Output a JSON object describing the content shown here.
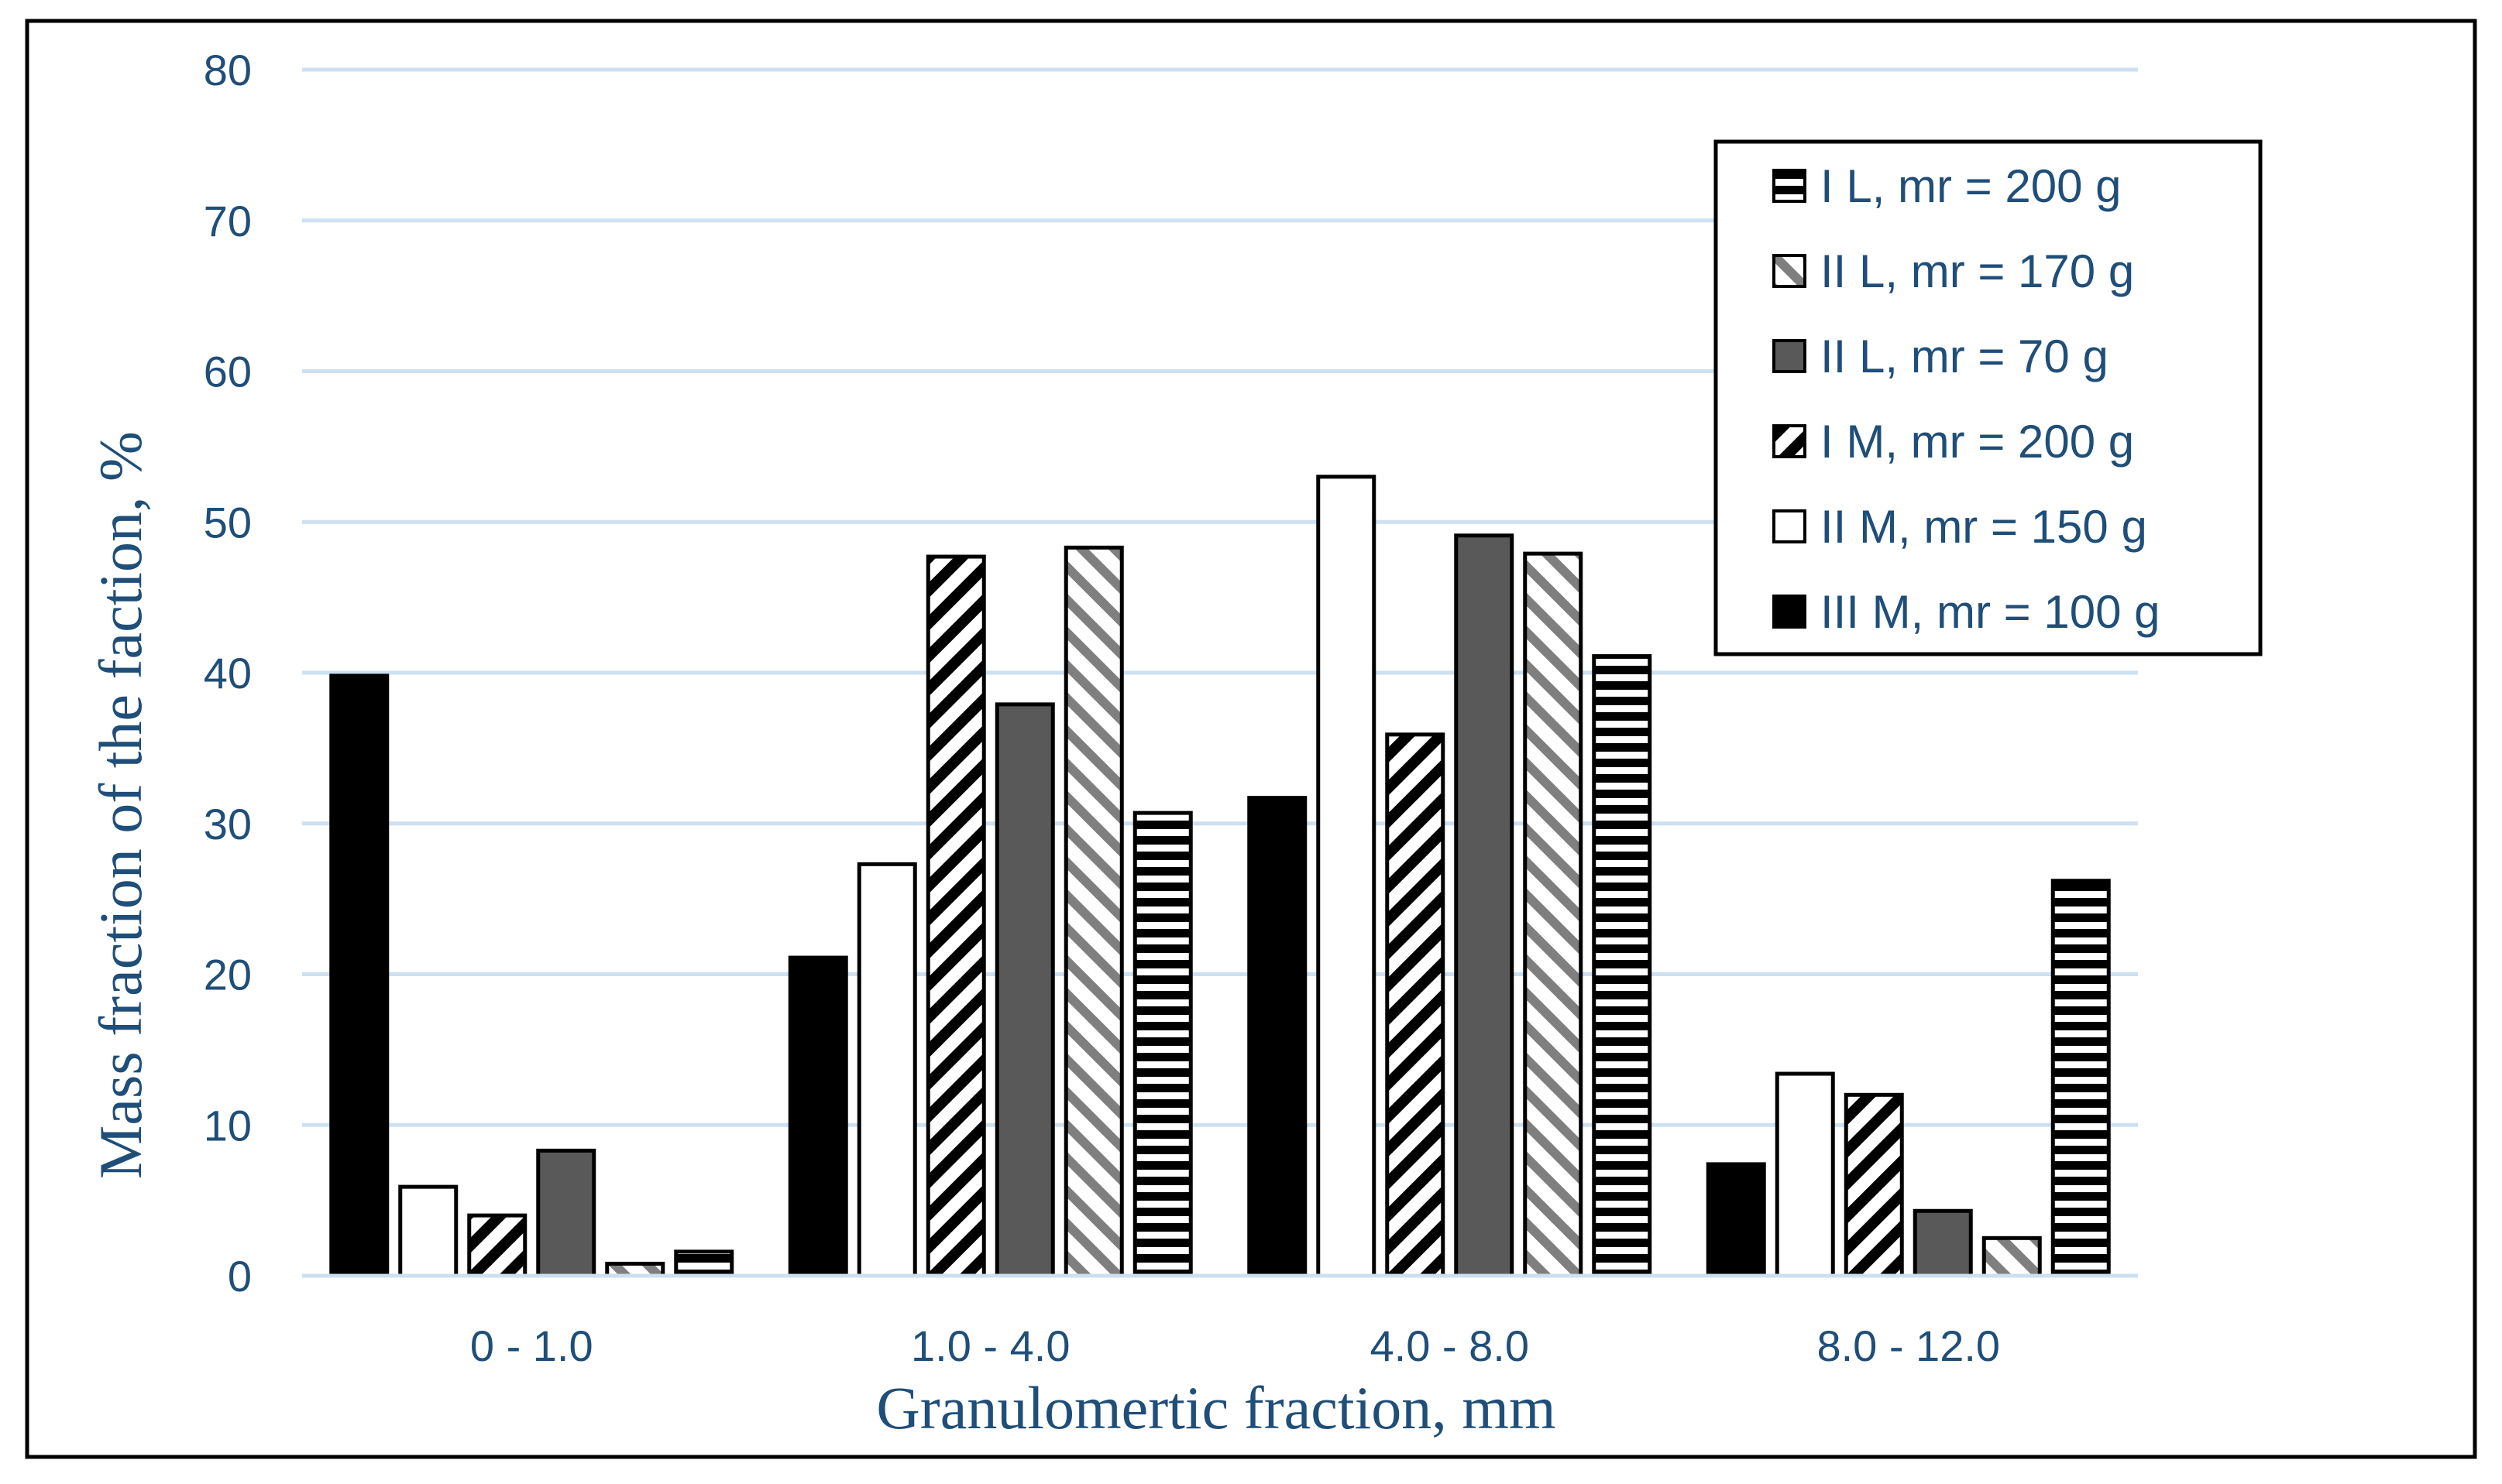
{
  "chart_data": {
    "type": "bar",
    "title": "",
    "xlabel": "Granulomertic fraction, mm",
    "ylabel": "Mass fraction of the faction, %",
    "categories": [
      "0 - 1.0",
      "1.0 - 4.0",
      "4.0 - 8.0",
      "8.0 - 12.0"
    ],
    "ylim": [
      0,
      80
    ],
    "yticks": [
      0,
      10,
      20,
      30,
      40,
      50,
      60,
      70,
      80
    ],
    "grid": true,
    "legend_position": "top-right",
    "series": [
      {
        "name": "III M, mr = 100 g",
        "pattern": "black",
        "values": [
          39.8,
          21.1,
          31.7,
          7.4
        ]
      },
      {
        "name": "II M, mr = 150 g",
        "pattern": "white",
        "values": [
          5.9,
          27.3,
          53.0,
          13.4
        ]
      },
      {
        "name": "I M, mr = 200 g",
        "pattern": "diag-down",
        "values": [
          4.0,
          47.7,
          35.9,
          12.0
        ]
      },
      {
        "name": "II L, mr = 70 g",
        "pattern": "gray",
        "values": [
          8.3,
          37.9,
          49.1,
          4.3
        ]
      },
      {
        "name": "II L, mr = 170 g",
        "pattern": "diag-up",
        "values": [
          0.8,
          48.3,
          47.9,
          2.5
        ]
      },
      {
        "name": "I L, mr = 200 g",
        "pattern": "hstripe",
        "values": [
          1.6,
          30.7,
          41.1,
          26.2
        ]
      }
    ],
    "legend_order": [
      5,
      4,
      3,
      2,
      1,
      0
    ]
  },
  "colors": {
    "text": "#1f4e79",
    "grid": "#cde0f0",
    "bar_black": "#000000",
    "bar_gray": "#595959",
    "bar_white": "#ffffff",
    "pattern_dark": "#000000",
    "pattern_mid": "#7f7f7f"
  }
}
